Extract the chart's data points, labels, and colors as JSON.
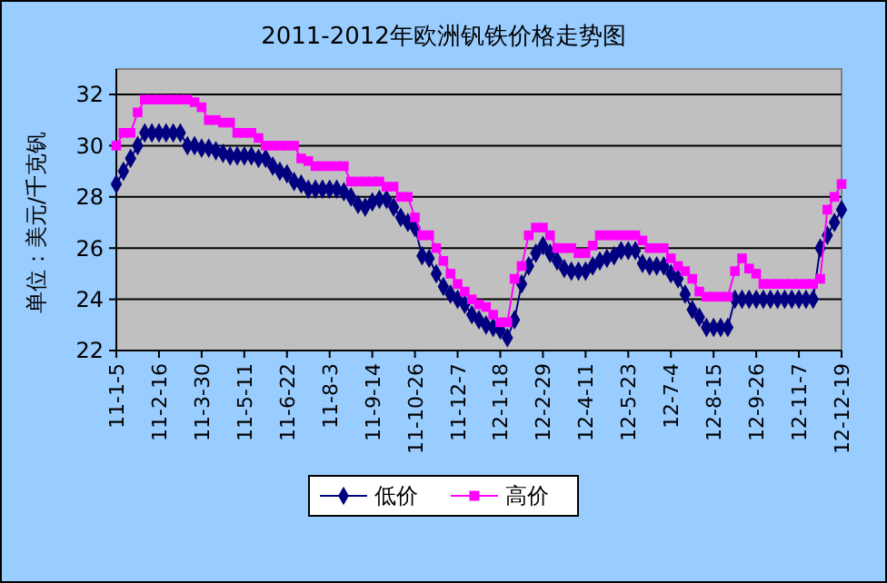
{
  "chart_data": {
    "type": "line",
    "title": "2011-2012年欧洲钒铁价格走势图",
    "ylabel": "单位：美元/千克钒",
    "categories": [
      "11-1-5",
      null,
      null,
      null,
      null,
      null,
      "11-2-16",
      null,
      null,
      null,
      null,
      null,
      "11-3-30",
      null,
      null,
      null,
      null,
      null,
      "11-5-11",
      null,
      null,
      null,
      null,
      null,
      "11-6-22",
      null,
      null,
      null,
      null,
      null,
      "11-8-3",
      null,
      null,
      null,
      null,
      null,
      "11-9-14",
      null,
      null,
      null,
      null,
      null,
      "11-10-26",
      null,
      null,
      null,
      null,
      null,
      "11-12-7",
      null,
      null,
      null,
      null,
      null,
      "12-1-18",
      null,
      null,
      null,
      null,
      null,
      "12-2-29",
      null,
      null,
      null,
      null,
      null,
      "12-4-11",
      null,
      null,
      null,
      null,
      null,
      "12-5-23",
      null,
      null,
      null,
      null,
      null,
      "12-7-4",
      null,
      null,
      null,
      null,
      null,
      "12-8-15",
      null,
      null,
      null,
      null,
      null,
      "12-9-26",
      null,
      null,
      null,
      null,
      null,
      "12-11-7",
      null,
      null,
      null,
      null,
      null,
      "12-12-19"
    ],
    "series": [
      {
        "name": "低价",
        "color": "#000080",
        "marker": "diamond",
        "values": [
          28.5,
          29.0,
          29.5,
          30.0,
          30.5,
          30.5,
          30.5,
          30.5,
          30.5,
          30.5,
          30.0,
          30.0,
          29.9,
          29.9,
          29.8,
          29.7,
          29.6,
          29.6,
          29.6,
          29.6,
          29.5,
          29.5,
          29.2,
          29.0,
          28.9,
          28.6,
          28.5,
          28.3,
          28.3,
          28.3,
          28.3,
          28.3,
          28.2,
          28.0,
          27.7,
          27.6,
          27.8,
          27.9,
          27.9,
          27.6,
          27.2,
          27.0,
          26.8,
          25.7,
          25.6,
          25.0,
          24.5,
          24.2,
          24.0,
          23.8,
          23.4,
          23.2,
          23.0,
          22.9,
          22.8,
          22.5,
          23.2,
          24.6,
          25.3,
          25.8,
          26.1,
          25.8,
          25.5,
          25.2,
          25.1,
          25.1,
          25.1,
          25.3,
          25.5,
          25.6,
          25.7,
          25.9,
          25.9,
          25.9,
          25.4,
          25.3,
          25.3,
          25.3,
          25.0,
          24.8,
          24.2,
          23.6,
          23.3,
          22.9,
          22.9,
          22.9,
          22.9,
          24.0,
          24.0,
          24.0,
          24.0,
          24.0,
          24.0,
          24.0,
          24.0,
          24.0,
          24.0,
          24.0,
          24.0,
          26.0,
          26.5,
          27.0,
          27.5
        ]
      },
      {
        "name": "高价",
        "color": "#ff00ff",
        "marker": "square",
        "values": [
          30.0,
          30.5,
          30.5,
          31.3,
          31.8,
          31.8,
          31.8,
          31.8,
          31.8,
          31.8,
          31.8,
          31.7,
          31.5,
          31.0,
          31.0,
          30.9,
          30.9,
          30.5,
          30.5,
          30.5,
          30.3,
          30.0,
          30.0,
          30.0,
          30.0,
          30.0,
          29.5,
          29.4,
          29.2,
          29.2,
          29.2,
          29.2,
          29.2,
          28.6,
          28.6,
          28.6,
          28.6,
          28.6,
          28.4,
          28.4,
          28.0,
          28.0,
          27.2,
          26.5,
          26.5,
          26.0,
          25.5,
          25.0,
          24.6,
          24.3,
          24.0,
          23.8,
          23.7,
          23.4,
          23.1,
          23.1,
          24.8,
          25.3,
          26.5,
          26.8,
          26.8,
          26.5,
          26.0,
          26.0,
          26.0,
          25.8,
          25.8,
          26.1,
          26.5,
          26.5,
          26.5,
          26.5,
          26.5,
          26.5,
          26.3,
          26.0,
          26.0,
          26.0,
          25.6,
          25.3,
          25.1,
          24.8,
          24.3,
          24.1,
          24.1,
          24.1,
          24.1,
          25.1,
          25.6,
          25.2,
          25.0,
          24.6,
          24.6,
          24.6,
          24.6,
          24.6,
          24.6,
          24.6,
          24.6,
          24.8,
          27.5,
          28.0,
          28.5
        ]
      }
    ],
    "ylim": [
      22,
      32
    ],
    "yticks": [
      22,
      24,
      26,
      28,
      30,
      32
    ],
    "grid": "y",
    "legend": "bottom"
  }
}
